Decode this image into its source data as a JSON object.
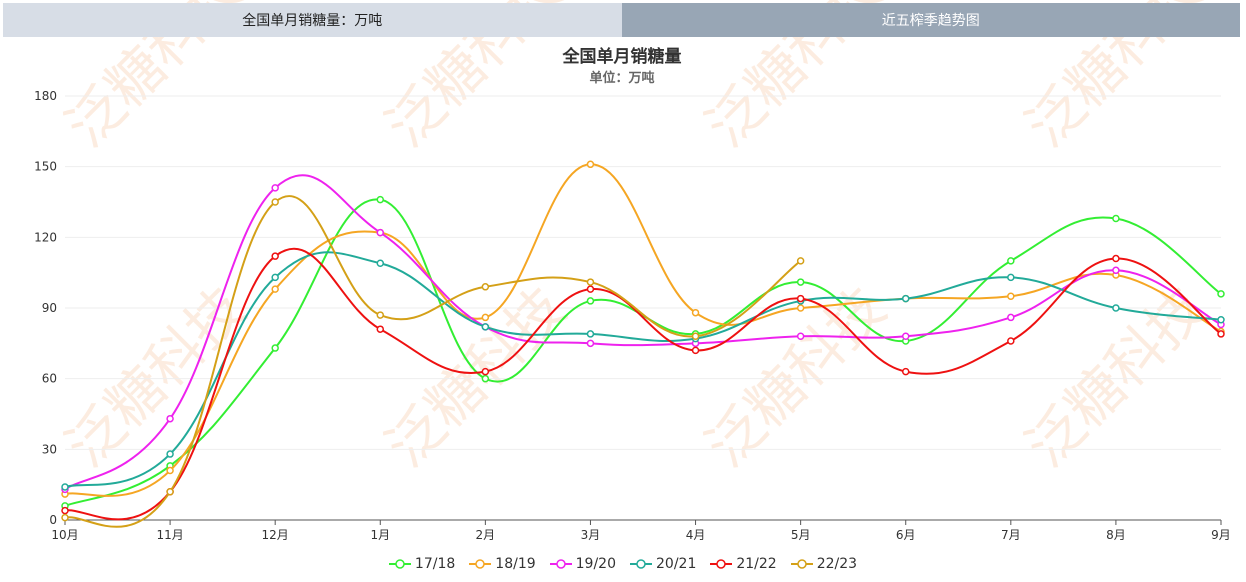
{
  "tabs": [
    {
      "label": "全国单月销糖量：万吨"
    },
    {
      "label": "近五榨季趋势图"
    }
  ],
  "chart_data": {
    "type": "line",
    "title": "全国单月销糖量",
    "subtitle": "单位：万吨",
    "xlabel": "",
    "ylabel": "",
    "categories": [
      "10月",
      "11月",
      "12月",
      "1月",
      "2月",
      "3月",
      "4月",
      "5月",
      "6月",
      "7月",
      "8月",
      "9月"
    ],
    "yticks": [
      0,
      30,
      60,
      90,
      120,
      150,
      180
    ],
    "ylim": [
      0,
      180
    ],
    "grid": true,
    "legend_position": "bottom",
    "smooth": true,
    "series": [
      {
        "name": "17/18",
        "color": "#33ee33",
        "values": [
          6,
          23,
          73,
          136,
          60,
          93,
          79,
          101,
          76,
          110,
          128,
          96
        ]
      },
      {
        "name": "18/19",
        "color": "#f5a623",
        "values": [
          11,
          21,
          98,
          122,
          86,
          151,
          88,
          90,
          94,
          95,
          104,
          80
        ]
      },
      {
        "name": "19/20",
        "color": "#ee22ee",
        "values": [
          13,
          43,
          141,
          122,
          82,
          75,
          75,
          78,
          78,
          86,
          106,
          83
        ]
      },
      {
        "name": "20/21",
        "color": "#22aa99",
        "values": [
          14,
          28,
          103,
          109,
          82,
          79,
          77,
          93,
          94,
          103,
          90,
          85
        ]
      },
      {
        "name": "21/22",
        "color": "#ee1111",
        "values": [
          4,
          12,
          112,
          81,
          63,
          98,
          72,
          94,
          63,
          76,
          111,
          79
        ]
      },
      {
        "name": "22/23",
        "color": "#d4a017",
        "values": [
          1,
          12,
          135,
          87,
          99,
          101,
          78,
          110,
          null,
          null,
          null,
          null
        ]
      }
    ]
  }
}
